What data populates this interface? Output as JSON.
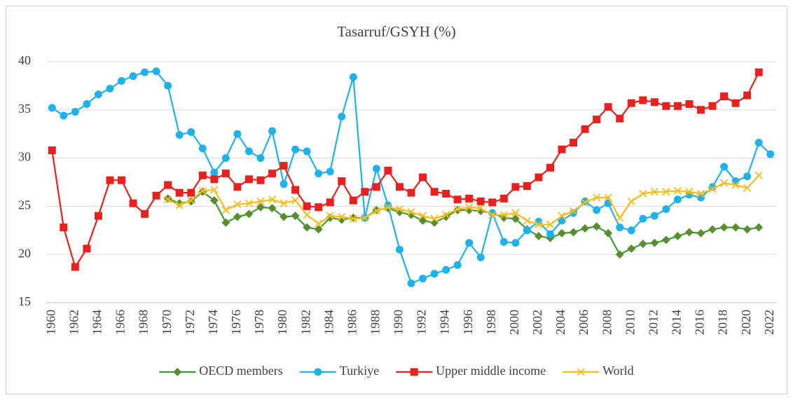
{
  "chart_data": {
    "type": "line",
    "title": "Tasarruf/GSYH (%)",
    "categories": [
      "1960",
      null,
      "1962",
      null,
      "1964",
      null,
      "1966",
      null,
      "1968",
      null,
      "1970",
      null,
      "1972",
      null,
      "1974",
      null,
      "1976",
      null,
      "1978",
      null,
      "1980",
      null,
      "1982",
      null,
      "1984",
      null,
      "1986",
      null,
      "1988",
      null,
      "1990",
      null,
      "1992",
      null,
      "1994",
      null,
      "1996",
      null,
      "1998",
      null,
      "2000",
      null,
      "2002",
      null,
      "2004",
      null,
      "2006",
      null,
      "2008",
      null,
      "2010",
      null,
      "2012",
      null,
      "2014",
      null,
      "2016",
      null,
      "2018",
      null,
      "2020",
      null,
      "2022"
    ],
    "ylim": [
      15,
      40
    ],
    "yticks": [
      15,
      20,
      25,
      30,
      35,
      40
    ],
    "grid": true,
    "legend": "bottom",
    "series": [
      {
        "name": "OECD members",
        "color": "#3a9a35",
        "marker": "diamond",
        "marker_color": "#5b8c2f",
        "values": [
          null,
          null,
          null,
          null,
          null,
          null,
          null,
          null,
          null,
          null,
          25.8,
          25.3,
          25.5,
          26.5,
          25.6,
          23.3,
          23.9,
          24.2,
          24.9,
          24.8,
          23.9,
          24.0,
          22.8,
          22.6,
          23.8,
          23.6,
          23.8,
          23.8,
          24.6,
          24.8,
          24.4,
          24.1,
          23.5,
          23.3,
          23.9,
          24.6,
          24.6,
          24.5,
          24.3,
          23.8,
          23.7,
          22.6,
          21.9,
          21.7,
          22.2,
          22.3,
          22.7,
          22.9,
          22.2,
          20.0,
          20.6,
          21.1,
          21.2,
          21.5,
          21.9,
          22.3,
          22.2,
          22.6,
          22.8,
          22.8,
          22.6,
          22.8,
          null
        ]
      },
      {
        "name": "Turkiye",
        "color": "#1fb1ea",
        "marker": "circle",
        "marker_color": "#1fb1ea",
        "values": [
          35.2,
          34.4,
          34.8,
          35.6,
          36.6,
          37.2,
          38.0,
          38.5,
          38.9,
          39.0,
          37.5,
          32.4,
          32.7,
          31.0,
          28.5,
          30.0,
          32.5,
          30.7,
          30.0,
          32.8,
          27.3,
          30.9,
          30.7,
          28.4,
          28.6,
          34.3,
          38.4,
          23.8,
          28.9,
          25.1,
          20.5,
          17.0,
          17.5,
          18.0,
          18.4,
          18.9,
          21.2,
          19.7,
          24.3,
          21.3,
          21.2,
          22.5,
          23.4,
          22.1,
          23.5,
          24.3,
          25.5,
          24.6,
          25.3,
          22.8,
          22.5,
          23.7,
          24.0,
          24.7,
          25.7,
          26.2,
          25.9,
          27.0,
          29.1,
          27.6,
          28.1,
          31.6,
          30.4
        ]
      },
      {
        "name": "Upper middle income",
        "color": "#e8201e",
        "marker": "square",
        "marker_color": "#e8201e",
        "values": [
          30.8,
          22.8,
          18.7,
          20.6,
          24.0,
          27.7,
          27.7,
          25.3,
          24.2,
          26.1,
          27.2,
          26.4,
          26.4,
          28.2,
          27.8,
          28.4,
          27.0,
          27.8,
          27.7,
          28.4,
          29.2,
          26.7,
          25.0,
          24.9,
          25.4,
          27.6,
          25.6,
          26.5,
          27.0,
          28.7,
          27.0,
          26.4,
          28.0,
          26.5,
          26.3,
          25.7,
          25.8,
          25.5,
          25.4,
          25.8,
          27.0,
          27.1,
          28.0,
          29.0,
          30.9,
          31.6,
          33.0,
          34.0,
          35.3,
          34.1,
          35.7,
          36.0,
          35.8,
          35.4,
          35.4,
          35.6,
          35.0,
          35.4,
          36.4,
          35.7,
          36.5,
          38.9,
          null
        ]
      },
      {
        "name": "World",
        "color": "#f5bd1f",
        "marker": "x",
        "marker_color": "#f5bd1f",
        "values": [
          null,
          null,
          null,
          null,
          null,
          null,
          null,
          null,
          null,
          null,
          25.7,
          25.1,
          25.6,
          26.6,
          26.7,
          24.6,
          25.2,
          25.3,
          25.5,
          25.7,
          25.3,
          25.6,
          24.1,
          23.2,
          24.0,
          23.9,
          23.7,
          23.8,
          24.5,
          24.9,
          24.7,
          24.4,
          24.0,
          23.7,
          24.1,
          24.7,
          24.9,
          24.8,
          24.1,
          24.1,
          24.3,
          23.5,
          23.1,
          23.1,
          24.0,
          24.5,
          25.4,
          25.9,
          25.9,
          23.8,
          25.5,
          26.3,
          26.5,
          26.5,
          26.6,
          26.5,
          26.3,
          26.8,
          27.4,
          27.2,
          26.9,
          28.2,
          null
        ]
      }
    ]
  }
}
